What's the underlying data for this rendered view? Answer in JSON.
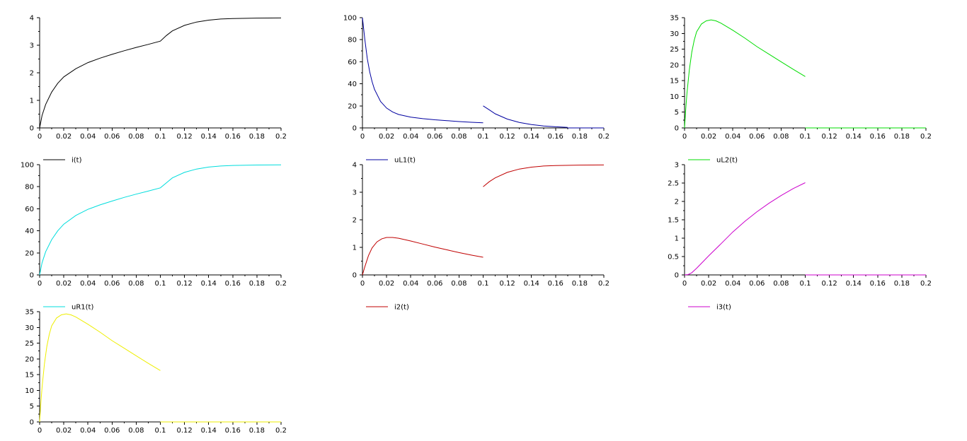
{
  "chart_data": [
    {
      "type": "line",
      "xlim": [
        0,
        0.2
      ],
      "ylim": [
        0,
        4
      ],
      "xticks": [
        "0",
        "0.02",
        "0.04",
        "0.06",
        "0.08",
        "0.1",
        "0.12",
        "0.14",
        "0.16",
        "0.18",
        "0.2"
      ],
      "yticks": [
        "0",
        "1",
        "2",
        "3",
        "4"
      ],
      "legend_position": "bottom-left",
      "series": [
        {
          "name": "i(t)",
          "color": "#000000",
          "segments": [
            [
              [
                0,
                0
              ],
              [
                0.002,
                0.45
              ],
              [
                0.005,
                0.85
              ],
              [
                0.01,
                1.3
              ],
              [
                0.015,
                1.62
              ],
              [
                0.02,
                1.85
              ],
              [
                0.03,
                2.15
              ],
              [
                0.04,
                2.37
              ],
              [
                0.05,
                2.53
              ],
              [
                0.06,
                2.67
              ],
              [
                0.07,
                2.8
              ],
              [
                0.08,
                2.92
              ],
              [
                0.09,
                3.03
              ],
              [
                0.1,
                3.15
              ],
              [
                0.105,
                3.35
              ],
              [
                0.11,
                3.52
              ],
              [
                0.12,
                3.72
              ],
              [
                0.13,
                3.84
              ],
              [
                0.14,
                3.91
              ],
              [
                0.15,
                3.95
              ],
              [
                0.16,
                3.97
              ],
              [
                0.18,
                3.985
              ],
              [
                0.2,
                3.99
              ]
            ]
          ]
        }
      ]
    },
    {
      "type": "line",
      "xlim": [
        0,
        0.2
      ],
      "ylim": [
        0,
        100
      ],
      "xticks": [
        "0",
        "0.02",
        "0.04",
        "0.06",
        "0.08",
        "0.1",
        "0.12",
        "0.14",
        "0.16",
        "0.18",
        "0.2"
      ],
      "yticks": [
        "0",
        "20",
        "40",
        "60",
        "80",
        "100"
      ],
      "legend_position": "bottom-left",
      "series": [
        {
          "name": "uL1(t)",
          "color": "#0000a0",
          "segments": [
            [
              [
                0,
                100
              ],
              [
                0.002,
                80
              ],
              [
                0.004,
                63
              ],
              [
                0.006,
                51
              ],
              [
                0.008,
                42
              ],
              [
                0.01,
                35
              ],
              [
                0.015,
                24
              ],
              [
                0.02,
                18
              ],
              [
                0.025,
                14.5
              ],
              [
                0.03,
                12.2
              ],
              [
                0.04,
                9.8
              ],
              [
                0.05,
                8.4
              ],
              [
                0.06,
                7.4
              ],
              [
                0.07,
                6.6
              ],
              [
                0.08,
                5.8
              ],
              [
                0.09,
                5.1
              ],
              [
                0.1,
                4.6
              ]
            ],
            [
              [
                0.1,
                20
              ],
              [
                0.105,
                16.5
              ],
              [
                0.11,
                12.8
              ],
              [
                0.12,
                8
              ],
              [
                0.13,
                5
              ],
              [
                0.14,
                3
              ],
              [
                0.15,
                1.8
              ],
              [
                0.16,
                1
              ],
              [
                0.17,
                0.5
              ]
            ],
            [
              [
                0.17,
                0
              ],
              [
                0.2,
                0
              ]
            ]
          ]
        }
      ]
    },
    {
      "type": "line",
      "xlim": [
        0,
        0.2
      ],
      "ylim": [
        0,
        35
      ],
      "xticks": [
        "0",
        "0.02",
        "0.04",
        "0.06",
        "0.08",
        "0.1",
        "0.12",
        "0.14",
        "0.16",
        "0.18",
        "0.2"
      ],
      "yticks": [
        "0",
        "5",
        "10",
        "15",
        "20",
        "25",
        "30",
        "35"
      ],
      "legend_position": "bottom-left",
      "series": [
        {
          "name": "uL2(t)",
          "color": "#00dd00",
          "segments": [
            [
              [
                0,
                0
              ],
              [
                0.001,
                6
              ],
              [
                0.002,
                11
              ],
              [
                0.004,
                18.5
              ],
              [
                0.006,
                24
              ],
              [
                0.008,
                27.8
              ],
              [
                0.01,
                30.5
              ],
              [
                0.014,
                33
              ],
              [
                0.018,
                34
              ],
              [
                0.022,
                34.3
              ],
              [
                0.026,
                34
              ],
              [
                0.03,
                33.3
              ],
              [
                0.04,
                31
              ],
              [
                0.05,
                28.5
              ],
              [
                0.06,
                25.8
              ],
              [
                0.07,
                23.4
              ],
              [
                0.08,
                21
              ],
              [
                0.09,
                18.6
              ],
              [
                0.1,
                16.3
              ]
            ],
            [
              [
                0.1,
                0
              ],
              [
                0.2,
                0
              ]
            ]
          ]
        }
      ]
    },
    {
      "type": "line",
      "xlim": [
        0,
        0.2
      ],
      "ylim": [
        0,
        100
      ],
      "xticks": [
        "0",
        "0.02",
        "0.04",
        "0.06",
        "0.08",
        "0.1",
        "0.12",
        "0.14",
        "0.16",
        "0.18",
        "0.2"
      ],
      "yticks": [
        "0",
        "20",
        "40",
        "60",
        "80",
        "100"
      ],
      "legend_position": "bottom-left",
      "series": [
        {
          "name": "uR1(t)",
          "color": "#00dddd",
          "segments": [
            [
              [
                0,
                0
              ],
              [
                0.002,
                11
              ],
              [
                0.005,
                21
              ],
              [
                0.01,
                32
              ],
              [
                0.015,
                40
              ],
              [
                0.02,
                46
              ],
              [
                0.03,
                54
              ],
              [
                0.04,
                59.5
              ],
              [
                0.05,
                63.5
              ],
              [
                0.06,
                67
              ],
              [
                0.07,
                70.3
              ],
              [
                0.08,
                73.3
              ],
              [
                0.09,
                76
              ],
              [
                0.1,
                79
              ],
              [
                0.105,
                83.5
              ],
              [
                0.11,
                88
              ],
              [
                0.12,
                93
              ],
              [
                0.13,
                96
              ],
              [
                0.14,
                97.8
              ],
              [
                0.15,
                98.8
              ],
              [
                0.16,
                99.3
              ],
              [
                0.18,
                99.7
              ],
              [
                0.2,
                99.9
              ]
            ]
          ]
        }
      ]
    },
    {
      "type": "line",
      "xlim": [
        0,
        0.2
      ],
      "ylim": [
        0,
        4
      ],
      "xticks": [
        "0",
        "0.02",
        "0.04",
        "0.06",
        "0.08",
        "0.1",
        "0.12",
        "0.14",
        "0.16",
        "0.18",
        "0.2"
      ],
      "yticks": [
        "0",
        "1",
        "2",
        "3",
        "4"
      ],
      "legend_position": "bottom-left",
      "series": [
        {
          "name": "i2(t)",
          "color": "#c00000",
          "segments": [
            [
              [
                0,
                0
              ],
              [
                0.002,
                0.3
              ],
              [
                0.005,
                0.7
              ],
              [
                0.008,
                0.98
              ],
              [
                0.012,
                1.2
              ],
              [
                0.016,
                1.31
              ],
              [
                0.02,
                1.36
              ],
              [
                0.025,
                1.36
              ],
              [
                0.03,
                1.33
              ],
              [
                0.04,
                1.23
              ],
              [
                0.05,
                1.12
              ],
              [
                0.06,
                1.01
              ],
              [
                0.07,
                0.91
              ],
              [
                0.08,
                0.81
              ],
              [
                0.09,
                0.72
              ],
              [
                0.1,
                0.64
              ]
            ],
            [
              [
                0.1,
                3.2
              ],
              [
                0.105,
                3.38
              ],
              [
                0.11,
                3.52
              ],
              [
                0.12,
                3.72
              ],
              [
                0.13,
                3.84
              ],
              [
                0.14,
                3.91
              ],
              [
                0.15,
                3.95
              ],
              [
                0.16,
                3.97
              ],
              [
                0.18,
                3.985
              ],
              [
                0.2,
                3.99
              ]
            ]
          ]
        }
      ]
    },
    {
      "type": "line",
      "xlim": [
        0,
        0.2
      ],
      "ylim": [
        0,
        3
      ],
      "xticks": [
        "0",
        "0.02",
        "0.04",
        "0.06",
        "0.08",
        "0.1",
        "0.12",
        "0.14",
        "0.16",
        "0.18",
        "0.2"
      ],
      "yticks": [
        "0",
        "0.5",
        "1",
        "1.5",
        "2",
        "2.5",
        "3"
      ],
      "legend_position": "bottom-left",
      "series": [
        {
          "name": "i3(t)",
          "color": "#cc00cc",
          "segments": [
            [
              [
                0,
                0
              ],
              [
                0.003,
                0.01
              ],
              [
                0.006,
                0.06
              ],
              [
                0.01,
                0.18
              ],
              [
                0.02,
                0.52
              ],
              [
                0.03,
                0.84
              ],
              [
                0.04,
                1.17
              ],
              [
                0.05,
                1.46
              ],
              [
                0.06,
                1.72
              ],
              [
                0.07,
                1.95
              ],
              [
                0.08,
                2.16
              ],
              [
                0.09,
                2.35
              ],
              [
                0.1,
                2.51
              ]
            ],
            [
              [
                0.1,
                0
              ],
              [
                0.2,
                0
              ]
            ]
          ]
        }
      ]
    },
    {
      "type": "line",
      "xlim": [
        0,
        0.2
      ],
      "ylim": [
        0,
        35
      ],
      "xticks": [
        "0",
        "0.02",
        "0.04",
        "0.06",
        "0.08",
        "0.1",
        "0.12",
        "0.14",
        "0.16",
        "0.18",
        "0.2"
      ],
      "yticks": [
        "0",
        "5",
        "10",
        "15",
        "20",
        "25",
        "30",
        "35"
      ],
      "legend_position": "bottom-left",
      "series": [
        {
          "name": "",
          "color": "#eeee00",
          "segments": [
            [
              [
                0,
                0
              ],
              [
                0.001,
                6
              ],
              [
                0.002,
                11
              ],
              [
                0.004,
                18.5
              ],
              [
                0.006,
                24
              ],
              [
                0.008,
                27.8
              ],
              [
                0.01,
                30.5
              ],
              [
                0.014,
                33
              ],
              [
                0.018,
                34
              ],
              [
                0.022,
                34.3
              ],
              [
                0.026,
                34
              ],
              [
                0.03,
                33.3
              ],
              [
                0.04,
                31
              ],
              [
                0.05,
                28.5
              ],
              [
                0.06,
                25.8
              ],
              [
                0.07,
                23.4
              ],
              [
                0.08,
                21
              ],
              [
                0.09,
                18.6
              ],
              [
                0.1,
                16.3
              ]
            ],
            [
              [
                0.1,
                0
              ],
              [
                0.2,
                0
              ]
            ]
          ]
        }
      ]
    }
  ]
}
